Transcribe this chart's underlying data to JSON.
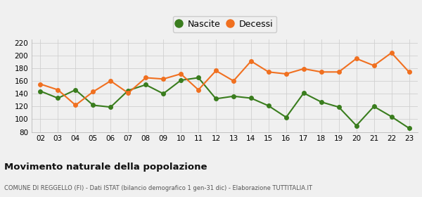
{
  "years": [
    "02",
    "03",
    "04",
    "05",
    "06",
    "07",
    "08",
    "09",
    "10",
    "11",
    "12",
    "13",
    "14",
    "15",
    "16",
    "17",
    "18",
    "19",
    "20",
    "21",
    "22",
    "23"
  ],
  "nascite": [
    144,
    133,
    146,
    122,
    119,
    145,
    154,
    140,
    161,
    165,
    132,
    136,
    133,
    121,
    103,
    141,
    127,
    119,
    90,
    120,
    104,
    86
  ],
  "decessi": [
    155,
    146,
    122,
    143,
    160,
    141,
    165,
    163,
    171,
    146,
    176,
    160,
    191,
    174,
    171,
    179,
    174,
    174,
    195,
    184,
    204,
    174
  ],
  "nascite_color": "#3a7d1e",
  "decessi_color": "#f07020",
  "background_color": "#f0f0f0",
  "grid_color": "#d0d0d0",
  "title": "Movimento naturale della popolazione",
  "subtitle": "COMUNE DI REGGELLO (FI) - Dati ISTAT (bilancio demografico 1 gen-31 dic) - Elaborazione TUTTITALIA.IT",
  "ylim": [
    80,
    225
  ],
  "yticks": [
    80,
    100,
    120,
    140,
    160,
    180,
    200,
    220
  ],
  "legend_nascite": "Nascite",
  "legend_decessi": "Decessi",
  "marker_size": 4,
  "line_width": 1.5
}
